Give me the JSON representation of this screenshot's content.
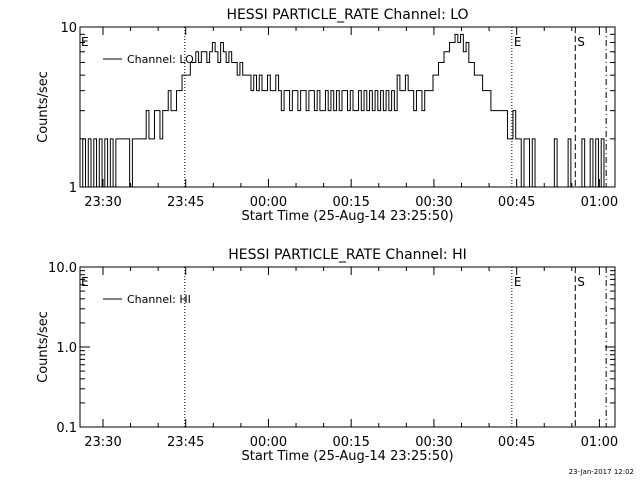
{
  "footer_timestamp": "23-Jan-2017 12:02",
  "chart_data": [
    {
      "type": "line",
      "title": "HESSI PARTICLE_RATE Channel: LO",
      "xlabel": "Start Time (25-Aug-14 23:25:50)",
      "ylabel": "Counts/sec",
      "x_unit": "minutes after 23:25:50",
      "x_range": [
        0,
        97
      ],
      "x_ticks": [
        {
          "at": 4.17,
          "label": "23:30"
        },
        {
          "at": 19.17,
          "label": "23:45"
        },
        {
          "at": 34.17,
          "label": "00:00"
        },
        {
          "at": 49.17,
          "label": "00:15"
        },
        {
          "at": 64.17,
          "label": "00:30"
        },
        {
          "at": 79.17,
          "label": "00:45"
        },
        {
          "at": 94.17,
          "label": "01:00"
        }
      ],
      "y_scale": "log",
      "ylim": [
        1,
        10
      ],
      "y_ticks": [
        {
          "v": 1,
          "label": "1"
        },
        {
          "v": 10,
          "label": "10"
        }
      ],
      "legend": {
        "position": "top-left",
        "entries": [
          "Channel: LO"
        ]
      },
      "markers": [
        {
          "x": 19.0,
          "style": "dotted",
          "label": "E",
          "label_side": "left"
        },
        {
          "x": 78.3,
          "style": "dotted",
          "label": "E",
          "label_side": "right"
        },
        {
          "x": 89.8,
          "style": "dashed",
          "label": "S",
          "label_side": "right"
        },
        {
          "x": 95.4,
          "style": "dashdot",
          "label": "",
          "label_side": "right"
        }
      ],
      "series": [
        {
          "name": "Channel: LO",
          "step": true,
          "points": [
            [
              0,
              1
            ],
            [
              0.5,
              2
            ],
            [
              1,
              1
            ],
            [
              1.5,
              2
            ],
            [
              2,
              1
            ],
            [
              2.5,
              2
            ],
            [
              3,
              1
            ],
            [
              3.5,
              2
            ],
            [
              4,
              1
            ],
            [
              4.5,
              2
            ],
            [
              5,
              1
            ],
            [
              5.5,
              2
            ],
            [
              6,
              1
            ],
            [
              6.5,
              2
            ],
            [
              7,
              2
            ],
            [
              7.5,
              2
            ],
            [
              8,
              2
            ],
            [
              8.5,
              2
            ],
            [
              9,
              1
            ],
            [
              9.5,
              2
            ],
            [
              10,
              2
            ],
            [
              10.5,
              2
            ],
            [
              11,
              2
            ],
            [
              11.5,
              2
            ],
            [
              12,
              3
            ],
            [
              12.5,
              2
            ],
            [
              13,
              2
            ],
            [
              13.5,
              3
            ],
            [
              14,
              3
            ],
            [
              14.5,
              2
            ],
            [
              15,
              3
            ],
            [
              15.5,
              3
            ],
            [
              16,
              4
            ],
            [
              16.5,
              3
            ],
            [
              17,
              3
            ],
            [
              17.5,
              4
            ],
            [
              18,
              4
            ],
            [
              18.5,
              5
            ],
            [
              19,
              5
            ],
            [
              19.5,
              5
            ],
            [
              20,
              6
            ],
            [
              20.5,
              6
            ],
            [
              21,
              7
            ],
            [
              21.5,
              6
            ],
            [
              22,
              7
            ],
            [
              22.5,
              7
            ],
            [
              23,
              6
            ],
            [
              23.5,
              7
            ],
            [
              24,
              8
            ],
            [
              24.5,
              7
            ],
            [
              25,
              6
            ],
            [
              25.5,
              8
            ],
            [
              26,
              7
            ],
            [
              26.5,
              6
            ],
            [
              27,
              7
            ],
            [
              27.5,
              6
            ],
            [
              28,
              6
            ],
            [
              28.5,
              5
            ],
            [
              29,
              6
            ],
            [
              29.5,
              5
            ],
            [
              30,
              5
            ],
            [
              30.5,
              5
            ],
            [
              31,
              4
            ],
            [
              31.5,
              5
            ],
            [
              32,
              4
            ],
            [
              32.5,
              5
            ],
            [
              33,
              4
            ],
            [
              33.5,
              4
            ],
            [
              34,
              5
            ],
            [
              34.5,
              4
            ],
            [
              35,
              4
            ],
            [
              35.5,
              5
            ],
            [
              36,
              4
            ],
            [
              36.5,
              3
            ],
            [
              37,
              4
            ],
            [
              37.5,
              4
            ],
            [
              38,
              3
            ],
            [
              38.5,
              4
            ],
            [
              39,
              4
            ],
            [
              39.5,
              3
            ],
            [
              40,
              4
            ],
            [
              40.5,
              4
            ],
            [
              41,
              3
            ],
            [
              41.5,
              4
            ],
            [
              42,
              4
            ],
            [
              42.5,
              3
            ],
            [
              43,
              4
            ],
            [
              43.5,
              3
            ],
            [
              44,
              3
            ],
            [
              44.5,
              4
            ],
            [
              45,
              3
            ],
            [
              45.5,
              4
            ],
            [
              46,
              3
            ],
            [
              46.5,
              4
            ],
            [
              47,
              3
            ],
            [
              47.5,
              4
            ],
            [
              48,
              4
            ],
            [
              48.5,
              3
            ],
            [
              49,
              4
            ],
            [
              49.5,
              3
            ],
            [
              50,
              3
            ],
            [
              50.5,
              4
            ],
            [
              51,
              3
            ],
            [
              51.5,
              4
            ],
            [
              52,
              3
            ],
            [
              52.5,
              4
            ],
            [
              53,
              3
            ],
            [
              53.5,
              4
            ],
            [
              54,
              3
            ],
            [
              54.5,
              4
            ],
            [
              55,
              3
            ],
            [
              55.5,
              4
            ],
            [
              56,
              3
            ],
            [
              56.5,
              4
            ],
            [
              57,
              3
            ],
            [
              57.5,
              5
            ],
            [
              58,
              4
            ],
            [
              58.5,
              4
            ],
            [
              59,
              5
            ],
            [
              59.5,
              4
            ],
            [
              60,
              4
            ],
            [
              60.5,
              3
            ],
            [
              61,
              4
            ],
            [
              61.5,
              4
            ],
            [
              62,
              3
            ],
            [
              62.5,
              4
            ],
            [
              63,
              4
            ],
            [
              63.5,
              4
            ],
            [
              64,
              5
            ],
            [
              64.5,
              5
            ],
            [
              65,
              6
            ],
            [
              65.5,
              6
            ],
            [
              66,
              7
            ],
            [
              66.5,
              7
            ],
            [
              67,
              8
            ],
            [
              67.5,
              8
            ],
            [
              68,
              9
            ],
            [
              68.5,
              8
            ],
            [
              69,
              9
            ],
            [
              69.5,
              7
            ],
            [
              70,
              8
            ],
            [
              70.5,
              6
            ],
            [
              71,
              6
            ],
            [
              71.5,
              5
            ],
            [
              72,
              5
            ],
            [
              72.5,
              5
            ],
            [
              73,
              4
            ],
            [
              73.5,
              4
            ],
            [
              74,
              4
            ],
            [
              74.5,
              3
            ],
            [
              75,
              3
            ],
            [
              75.5,
              3
            ],
            [
              76,
              3
            ],
            [
              76.5,
              3
            ],
            [
              77,
              3
            ],
            [
              77.5,
              2
            ],
            [
              78,
              2
            ],
            [
              78.5,
              3
            ],
            [
              79,
              2
            ],
            [
              79.5,
              2
            ],
            [
              80,
              1
            ],
            [
              80.5,
              2
            ],
            [
              81,
              2
            ],
            [
              81.5,
              1
            ],
            [
              82,
              2
            ],
            [
              82.5,
              1
            ],
            [
              83,
              1
            ],
            [
              83.5,
              1
            ],
            [
              84,
              1
            ],
            [
              84.5,
              1
            ],
            [
              85,
              1
            ],
            [
              85.5,
              1
            ],
            [
              86,
              2
            ],
            [
              86.5,
              1
            ],
            [
              87,
              1
            ],
            [
              87.5,
              1
            ],
            [
              88,
              1
            ],
            [
              88.5,
              2
            ],
            [
              89,
              1
            ],
            [
              89.5,
              1
            ],
            [
              90,
              1
            ],
            [
              90.5,
              1
            ],
            [
              91,
              2
            ],
            [
              91.5,
              1
            ],
            [
              92,
              1
            ],
            [
              92.5,
              2
            ],
            [
              93,
              1
            ],
            [
              93.5,
              2
            ],
            [
              94,
              1
            ],
            [
              94.5,
              2
            ],
            [
              95,
              1
            ]
          ]
        }
      ]
    },
    {
      "type": "line",
      "title": "HESSI PARTICLE_RATE Channel: HI",
      "xlabel": "Start Time (25-Aug-14 23:25:50)",
      "ylabel": "Counts/sec",
      "x_unit": "minutes after 23:25:50",
      "x_range": [
        0,
        97
      ],
      "x_ticks": [
        {
          "at": 4.17,
          "label": "23:30"
        },
        {
          "at": 19.17,
          "label": "23:45"
        },
        {
          "at": 34.17,
          "label": "00:00"
        },
        {
          "at": 49.17,
          "label": "00:15"
        },
        {
          "at": 64.17,
          "label": "00:30"
        },
        {
          "at": 79.17,
          "label": "00:45"
        },
        {
          "at": 94.17,
          "label": "01:00"
        }
      ],
      "y_scale": "log",
      "ylim": [
        0.1,
        10
      ],
      "y_ticks": [
        {
          "v": 0.1,
          "label": "0.1"
        },
        {
          "v": 1,
          "label": "1.0"
        },
        {
          "v": 10,
          "label": "10.0"
        }
      ],
      "legend": {
        "position": "top-left",
        "entries": [
          "Channel: HI"
        ]
      },
      "markers": [
        {
          "x": 19.0,
          "style": "dotted",
          "label": "E",
          "label_side": "left"
        },
        {
          "x": 78.3,
          "style": "dotted",
          "label": "E",
          "label_side": "right"
        },
        {
          "x": 89.8,
          "style": "dashed",
          "label": "S",
          "label_side": "right"
        },
        {
          "x": 95.4,
          "style": "dashdot",
          "label": "",
          "label_side": "right"
        }
      ],
      "series": [
        {
          "name": "Channel: HI",
          "step": true,
          "points": []
        }
      ]
    }
  ]
}
